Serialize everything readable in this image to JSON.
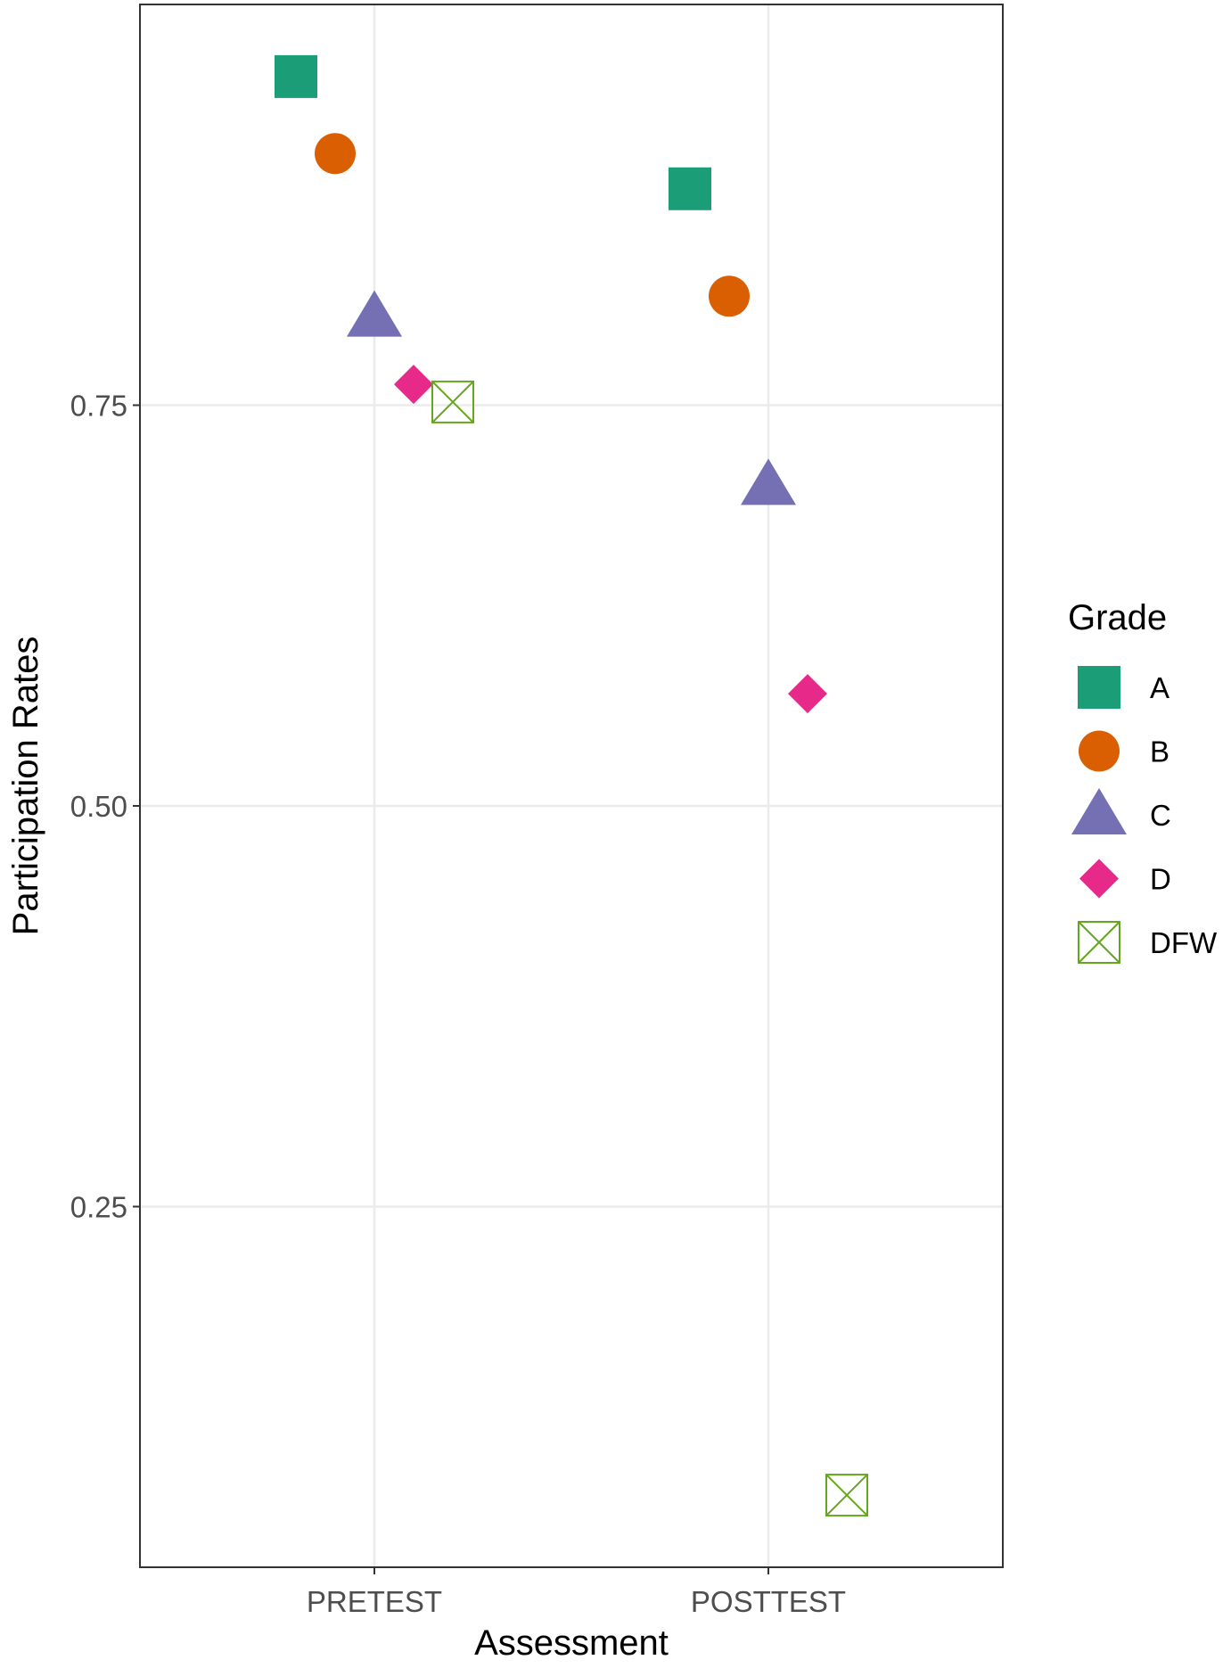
{
  "chart_data": {
    "type": "scatter",
    "title": "",
    "xlabel": "Assessment",
    "ylabel": "Participation Rates",
    "categories": [
      "PRETEST",
      "POSTTEST"
    ],
    "ylim": [
      0.025,
      1.0
    ],
    "yticks": [
      0.25,
      0.5,
      0.75
    ],
    "ytick_labels": [
      "0.25",
      "0.50",
      "0.75"
    ],
    "grid": true,
    "legend": {
      "title": "Grade",
      "position": "right"
    },
    "series": [
      {
        "name": "A",
        "shape": "square",
        "color": "#1b9e77",
        "values": [
          0.955,
          0.885
        ]
      },
      {
        "name": "B",
        "shape": "circle",
        "color": "#d95f02",
        "values": [
          0.907,
          0.818
        ]
      },
      {
        "name": "C",
        "shape": "triangle",
        "color": "#7570b3",
        "values": [
          0.805,
          0.7
        ]
      },
      {
        "name": "D",
        "shape": "diamond",
        "color": "#e7298a",
        "values": [
          0.763,
          0.57
        ]
      },
      {
        "name": "DFW",
        "shape": "square-x",
        "color": "#66a61e",
        "values": [
          0.752,
          0.07
        ]
      }
    ]
  }
}
